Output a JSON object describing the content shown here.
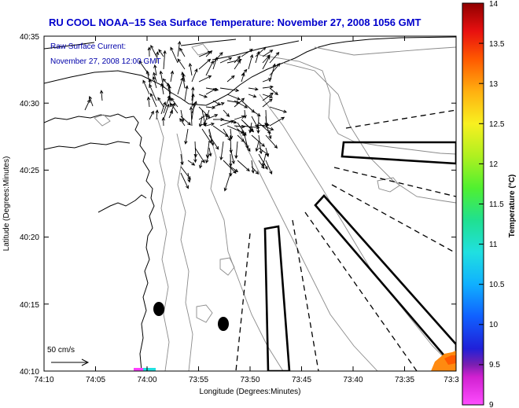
{
  "title": "RU COOL  NOAA–15  Sea Surface Temperature:  November 27, 2008 1056 GMT",
  "current_label": "Raw Surface Current:",
  "current_time": "November 27, 2008 12:00 GMT",
  "scale_label": "50 cm/s",
  "axes": {
    "xlabel": "Longitude (Degrees:Minutes)",
    "ylabel": "Latitude (Degrees:Minutes)",
    "xticks": [
      "74:10",
      "74:05",
      "74:00",
      "73:55",
      "73:50",
      "73:45",
      "73:40",
      "73:35",
      "73:3"
    ],
    "yticks": [
      "40:35",
      "40:30",
      "40:25",
      "40:20",
      "40:15",
      "40:10"
    ]
  },
  "colorbar": {
    "label": "Temperature (°C)",
    "ticks": [
      "14",
      "13.5",
      "13",
      "12.5",
      "12",
      "11.5",
      "11",
      "10.5",
      "10",
      "9.5",
      "9"
    ],
    "min": 9,
    "max": 14
  },
  "chart_data": {
    "type": "map",
    "title": "RU COOL  NOAA–15  Sea Surface Temperature:  November 27, 2008 1056 GMT",
    "xlabel": "Longitude (Degrees:Minutes)",
    "ylabel": "Latitude (Degrees:Minutes)",
    "xlim": [
      "74:10",
      "73:30"
    ],
    "ylim": [
      "40:10",
      "40:35"
    ],
    "colorscale_range": [
      9,
      14
    ],
    "colorscale_units": "°C"
  }
}
